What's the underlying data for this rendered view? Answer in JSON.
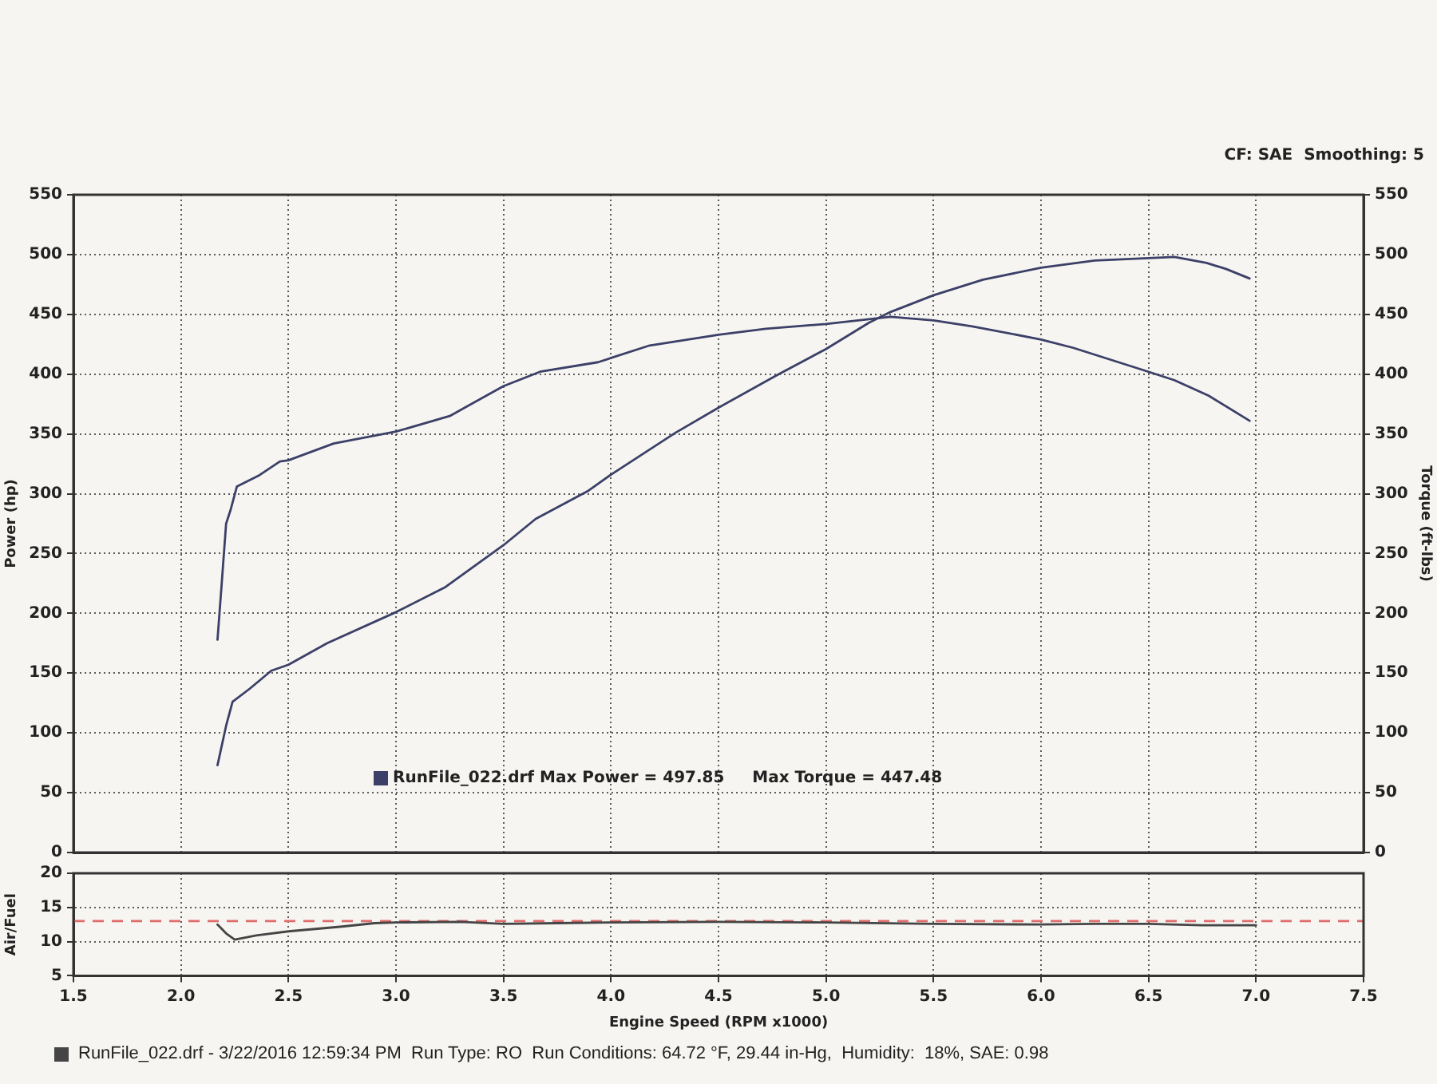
{
  "chart_data": [
    {
      "type": "line",
      "xlim": [
        1.5,
        7.5
      ],
      "xticks": [
        1.5,
        2,
        2.5,
        3,
        3.5,
        4,
        4.5,
        5,
        5.5,
        6,
        6.5,
        7,
        7.5
      ],
      "ylim": [
        0,
        550
      ],
      "yticks": [
        0,
        50,
        100,
        150,
        200,
        250,
        300,
        350,
        400,
        450,
        500,
        550
      ],
      "y2lim": [
        0,
        550
      ],
      "y2ticks": [
        0,
        50,
        100,
        150,
        200,
        250,
        300,
        350,
        400,
        450,
        500,
        550
      ],
      "ylabel": "Power (hp)",
      "y2label": "Torque (ft-lbs)",
      "tick_labels": "y",
      "grid": true,
      "annotations": [
        "CF: SAE  Smoothing: 5",
        "RunFile_022.drf Max Power = 497.85     Max Torque = 447.48"
      ],
      "series": [
        {
          "color": "#3c4068",
          "x": [
            2.17,
            2.21,
            2.24,
            2.32,
            2.42,
            2.5,
            2.68,
            3.0,
            3.23,
            3.5,
            3.65,
            3.89,
            4.0,
            4.3,
            4.5,
            4.77,
            5.0,
            5.2,
            5.3,
            5.5,
            5.73,
            6.0,
            6.25,
            6.5,
            6.62,
            6.77,
            6.86,
            6.97
          ],
          "values": [
            73,
            106,
            126,
            137,
            152,
            157,
            175,
            201,
            222,
            257,
            279,
            302,
            316,
            351,
            372,
            399,
            421,
            443,
            452,
            466,
            479,
            489,
            495,
            497,
            498,
            493,
            488,
            480
          ]
        },
        {
          "color": "#3c4068",
          "axis": "y2",
          "x": [
            2.17,
            2.19,
            2.21,
            2.23,
            2.26,
            2.36,
            2.46,
            2.5,
            2.71,
            3.0,
            3.25,
            3.5,
            3.67,
            3.94,
            4.18,
            4.5,
            4.72,
            5.0,
            5.3,
            5.5,
            5.68,
            6.0,
            6.15,
            6.5,
            6.62,
            6.78,
            6.97
          ],
          "values": [
            178,
            226,
            275,
            286,
            306,
            315,
            327,
            328,
            342,
            352,
            365,
            390,
            402,
            410,
            424,
            433,
            438,
            442,
            448,
            445,
            440,
            429,
            422,
            402,
            395,
            382,
            361
          ]
        }
      ]
    },
    {
      "type": "line",
      "xlim": [
        1.5,
        7.5
      ],
      "xticks": [
        1.5,
        {
          "value": 2,
          "label": "2.0"
        },
        2.5,
        {
          "value": 3,
          "label": "3.0"
        },
        3.5,
        {
          "value": 4,
          "label": "4.0"
        },
        4.5,
        {
          "value": 5,
          "label": "5.0"
        },
        5.5,
        {
          "value": 6,
          "label": "6.0"
        },
        6.5,
        {
          "value": 7,
          "label": "7.0"
        },
        7.5
      ],
      "ylim": [
        5,
        20
      ],
      "yticks": [
        5,
        10,
        15,
        20
      ],
      "xlabel": "Engine Speed (RPM x1000)",
      "ylabel": "Air/Fuel",
      "grid": true,
      "ref_lines": [
        {
          "axis": "y",
          "value": 13,
          "color": "#e06b6b",
          "line_style": "dashed"
        }
      ],
      "annotations": [
        "RunFile_022.drf - 3/22/2016 12:59:34 PM  Run Type: RO  Run Conditions: 64.72 °F, 29.44 in-Hg,  Humidity:  18%, SAE: 0.98"
      ],
      "series": [
        {
          "color": "#454545",
          "x": [
            2.17,
            2.21,
            2.25,
            2.35,
            2.5,
            2.75,
            2.9,
            3.0,
            3.3,
            3.5,
            3.75,
            4.0,
            4.5,
            5.0,
            5.5,
            6.0,
            6.25,
            6.5,
            6.75,
            7.0
          ],
          "values": [
            12.5,
            11.2,
            10.3,
            10.9,
            11.5,
            12.2,
            12.7,
            12.8,
            12.9,
            12.6,
            12.7,
            12.8,
            12.9,
            12.8,
            12.6,
            12.5,
            12.6,
            12.6,
            12.4,
            12.4
          ]
        }
      ]
    }
  ]
}
